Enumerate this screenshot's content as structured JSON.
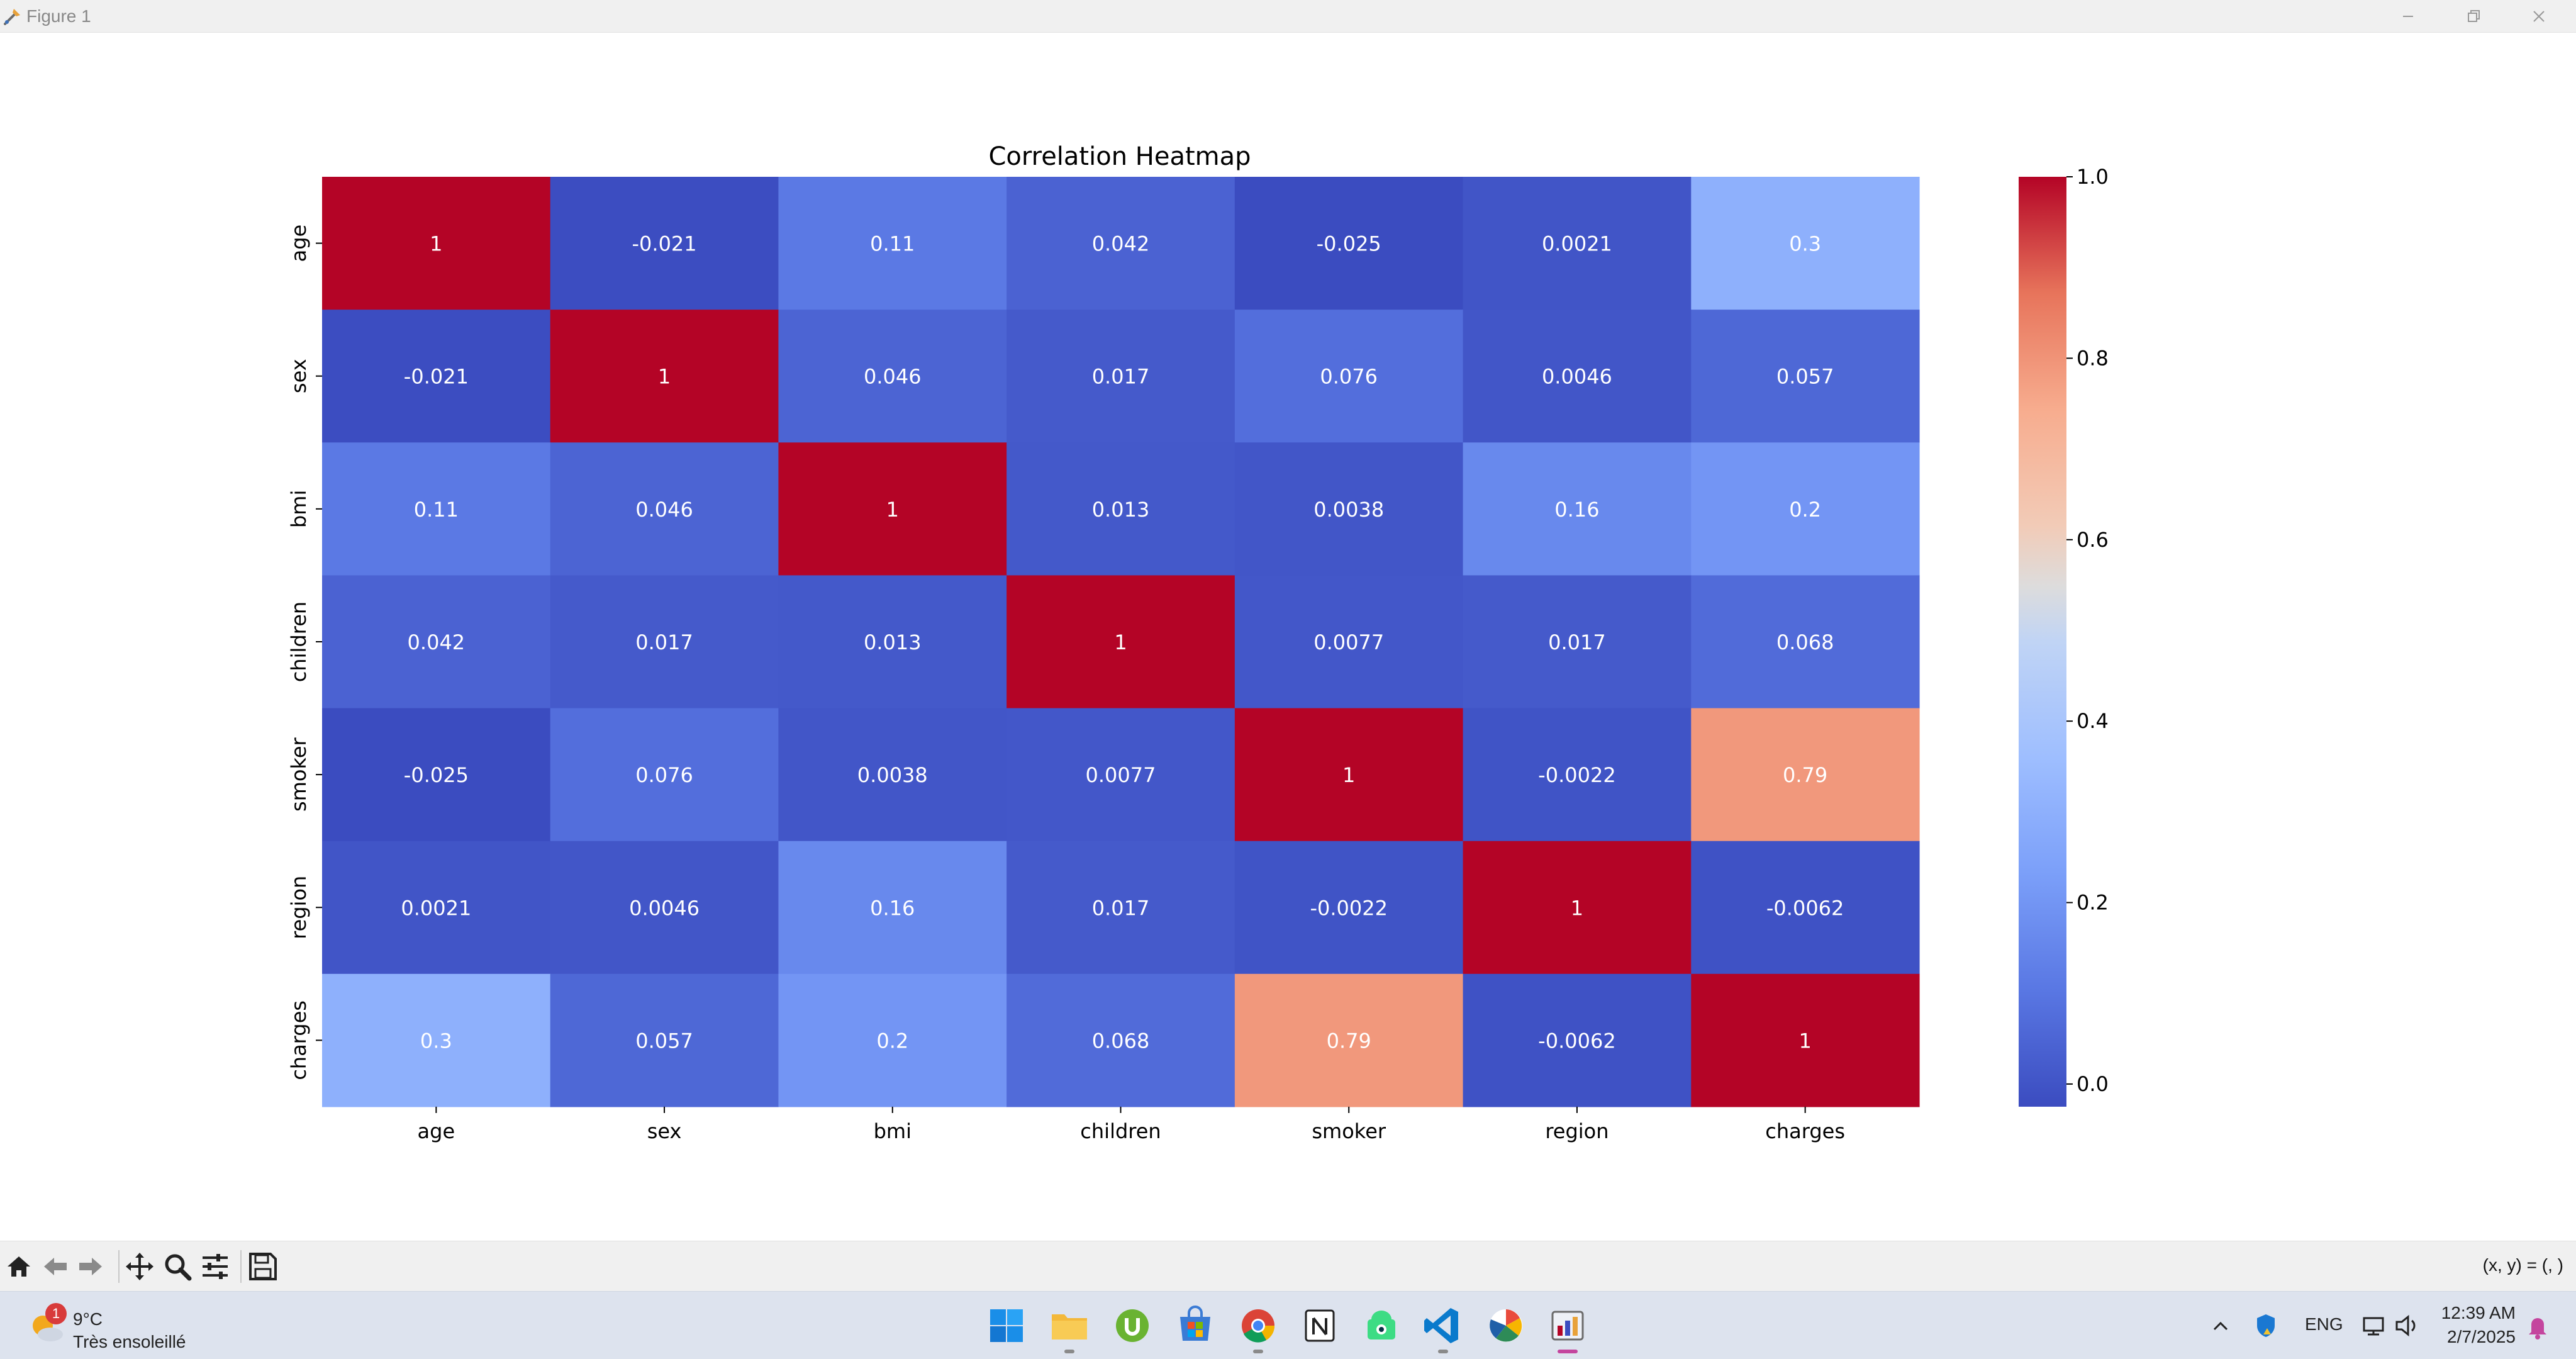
{
  "window": {
    "title": "Figure 1"
  },
  "chart_data": {
    "type": "heatmap",
    "title": "Correlation Heatmap",
    "x_labels": [
      "age",
      "sex",
      "bmi",
      "children",
      "smoker",
      "region",
      "charges"
    ],
    "y_labels": [
      "age",
      "sex",
      "bmi",
      "children",
      "smoker",
      "region",
      "charges"
    ],
    "values": [
      [
        1,
        -0.021,
        0.11,
        0.042,
        -0.025,
        0.0021,
        0.3
      ],
      [
        -0.021,
        1,
        0.046,
        0.017,
        0.076,
        0.0046,
        0.057
      ],
      [
        0.11,
        0.046,
        1,
        0.013,
        0.0038,
        0.16,
        0.2
      ],
      [
        0.042,
        0.017,
        0.013,
        1,
        0.0077,
        0.017,
        0.068
      ],
      [
        -0.025,
        0.076,
        0.0038,
        0.0077,
        1,
        -0.0022,
        0.79
      ],
      [
        0.0021,
        0.0046,
        0.16,
        0.017,
        -0.0022,
        1,
        -0.0062
      ],
      [
        0.3,
        0.057,
        0.2,
        0.068,
        0.79,
        -0.0062,
        1
      ]
    ],
    "annotations": [
      [
        "1",
        "-0.021",
        "0.11",
        "0.042",
        "-0.025",
        "0.0021",
        "0.3"
      ],
      [
        "-0.021",
        "1",
        "0.046",
        "0.017",
        "0.076",
        "0.0046",
        "0.057"
      ],
      [
        "0.11",
        "0.046",
        "1",
        "0.013",
        "0.0038",
        "0.16",
        "0.2"
      ],
      [
        "0.042",
        "0.017",
        "0.013",
        "1",
        "0.0077",
        "0.017",
        "0.068"
      ],
      [
        "-0.025",
        "0.076",
        "0.0038",
        "0.0077",
        "1",
        "-0.0022",
        "0.79"
      ],
      [
        "0.0021",
        "0.0046",
        "0.16",
        "0.017",
        "-0.0022",
        "1",
        "-0.0062"
      ],
      [
        "0.3",
        "0.057",
        "0.2",
        "0.068",
        "0.79",
        "-0.0062",
        "1"
      ]
    ],
    "colormap": "coolwarm",
    "colorbar": {
      "range": [
        -0.025,
        1.0
      ],
      "ticks": [
        0.0,
        0.2,
        0.4,
        0.6,
        0.8,
        1.0
      ],
      "tick_labels": [
        "0.0",
        "0.2",
        "0.4",
        "0.6",
        "0.8",
        "1.0"
      ]
    },
    "xlabel": "",
    "ylabel": ""
  },
  "toolbar": {
    "buttons": [
      "home-icon",
      "back-arrow-icon",
      "forward-arrow-icon",
      "pan-icon",
      "zoom-icon",
      "configure-subplots-icon",
      "save-icon"
    ],
    "coords_text": "(x, y) = (, )"
  },
  "taskbar": {
    "weather": {
      "badge": "1",
      "temp": "9°C",
      "desc": "Très ensoleillé"
    },
    "apps": [
      "start-icon",
      "file-explorer-icon",
      "utorrent-icon",
      "microsoft-store-icon",
      "chrome-icon",
      "notion-icon",
      "android-studio-icon",
      "vscode-icon",
      "pinwheel-app-icon",
      "matplotlib-figure-icon"
    ],
    "lang": "ENG",
    "time": "12:39 AM",
    "date": "2/7/2025"
  }
}
